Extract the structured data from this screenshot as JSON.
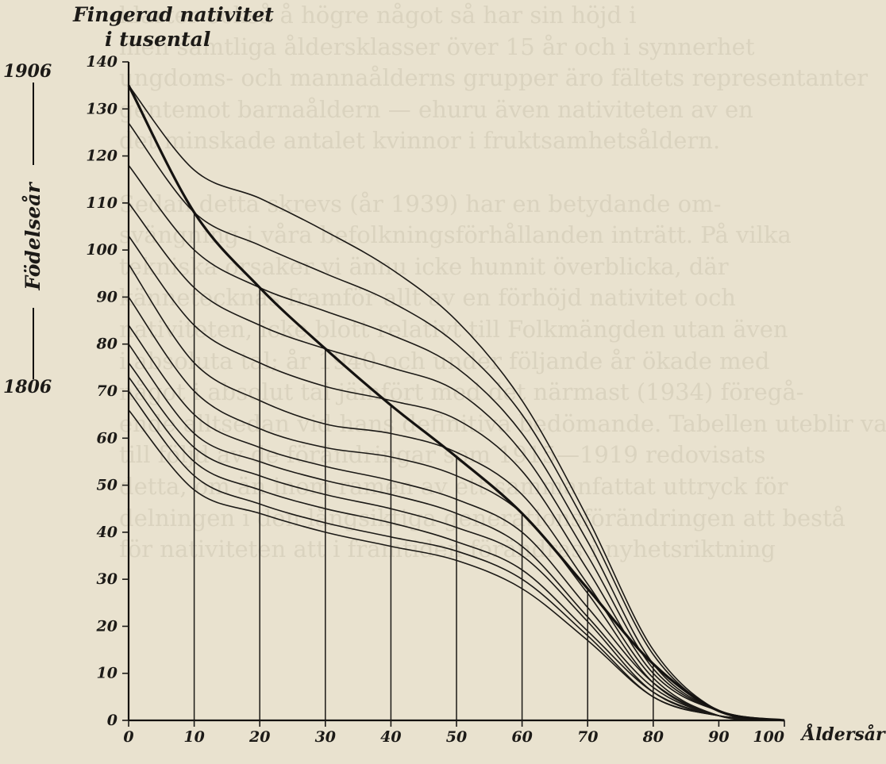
{
  "chart_data": {
    "type": "line",
    "title_lines": [
      "Fingerad nativitet",
      "i tusental"
    ],
    "ylabel": "Födelseår",
    "y_marker_top": "1906",
    "y_marker_bottom": "1806",
    "xlabel": "Åldersår",
    "xlim": [
      0,
      100
    ],
    "ylim": [
      0,
      140
    ],
    "x_ticks": [
      "0",
      "10",
      "20",
      "30",
      "40",
      "50",
      "60",
      "70",
      "80",
      "90",
      "100"
    ],
    "y_ticks": [
      "0",
      "10",
      "20",
      "30",
      "40",
      "50",
      "60",
      "70",
      "80",
      "90",
      "100",
      "110",
      "120",
      "130",
      "140"
    ],
    "x": [
      0,
      10,
      20,
      30,
      40,
      50,
      60,
      70,
      80,
      90,
      100
    ],
    "series": [
      {
        "values": [
          135,
          117,
          111,
          104,
          96,
          85,
          68,
          43,
          15,
          2,
          0
        ]
      },
      {
        "values": [
          127,
          108,
          101,
          95,
          89,
          80,
          65,
          41,
          14,
          2,
          0
        ]
      },
      {
        "values": [
          118,
          100,
          92,
          87,
          82,
          75,
          61,
          38,
          12,
          2,
          0
        ]
      },
      {
        "values": [
          110,
          92,
          84,
          79,
          75,
          70,
          57,
          35,
          11,
          2,
          0
        ]
      },
      {
        "values": [
          103,
          84,
          76,
          71,
          68,
          64,
          53,
          32,
          10,
          2,
          0
        ]
      },
      {
        "values": [
          97,
          76,
          68,
          63,
          61,
          57,
          48,
          29,
          9,
          1,
          0
        ]
      },
      {
        "values": [
          90,
          70,
          62,
          58,
          56,
          52,
          44,
          27,
          8,
          1,
          0
        ]
      },
      {
        "values": [
          84,
          65,
          58,
          54,
          51,
          47,
          40,
          24,
          8,
          1,
          0
        ]
      },
      {
        "values": [
          80,
          61,
          55,
          51,
          48,
          44,
          37,
          22,
          7,
          1,
          0
        ]
      },
      {
        "values": [
          76,
          58,
          52,
          48,
          45,
          41,
          35,
          21,
          6,
          1,
          0
        ]
      },
      {
        "values": [
          73,
          55,
          49,
          45,
          42,
          38,
          32,
          19,
          6,
          1,
          0
        ]
      },
      {
        "values": [
          70,
          52,
          46,
          42,
          39,
          36,
          30,
          18,
          5,
          1,
          0
        ]
      },
      {
        "values": [
          66,
          49,
          44,
          40,
          37,
          34,
          28,
          17,
          5,
          1,
          0
        ]
      }
    ],
    "diagonal": {
      "x": [
        0,
        10,
        20,
        30,
        40,
        50,
        60,
        70,
        80,
        90,
        100
      ],
      "values": [
        135,
        108,
        92,
        79,
        67,
        56,
        44,
        28,
        12,
        2,
        0
      ]
    },
    "vertical_lines_x": [
      10,
      20,
      30,
      40,
      50,
      60,
      70,
      80
    ],
    "grid": false
  },
  "background_text": [
    "klarter också å högre något så har sin höjd i",
    "men samtliga åldersklasser över 15 år och i synnerhet",
    "ungdoms- och mannaålderns grupper äro fältets representanter",
    "gentemot barnaåldern — ehuru även nativiteten av en",
    "det minskade antalet kvinnor i fruktsamhetsåldern.",
    "",
    "Sedan detta skrevs (år 1939) har en betydande om-",
    "svängning i våra befolkningsförhållanden inträtt. På vilka",
    "tekniska orsaker vi ännu icke hunnit överblicka, där",
    "kännetecknas framför allt av en förhöjd nativitet och",
    "nativiteten, icke blott relativt till Folkmängden utan även",
    "i absoluta tal; år 1940 och under följande år ökade med",
    "något i absolut tal jämfört med det närmast (1934) föregå-",
    "ende alltsedan vid hans definitiva bedömande. Tabellen uteblir vad",
    "till följd av de förändringar som 1915—1919 redovisats",
    "detta, om än inom ramen av ett sammanfattat uttryck för",
    "delningen i den långsiktiga generationsförändringen att bestå",
    "för nativiteten att i framtiden förändras i nyhetsriktning"
  ]
}
